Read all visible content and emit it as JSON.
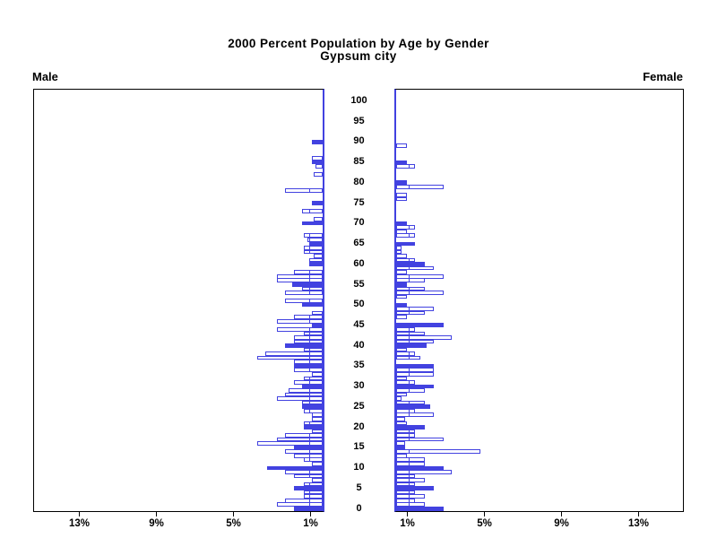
{
  "title": {
    "line1": "2000 Percent Population by Age by Gender",
    "line2": "Gypsum city"
  },
  "labels": {
    "male": "Male",
    "female": "Female"
  },
  "colors": {
    "bar_blue": "#4242e0",
    "axis_black": "#000000",
    "background": "#ffffff"
  },
  "axes": {
    "age_tick_labels": [
      "0",
      "5",
      "10",
      "15",
      "20",
      "25",
      "30",
      "35",
      "40",
      "45",
      "50",
      "55",
      "60",
      "65",
      "70",
      "75",
      "80",
      "85",
      "90",
      "95",
      "100"
    ],
    "male_pct_ticks": [
      {
        "value": 13,
        "label": "13%"
      },
      {
        "value": 9,
        "label": "9%"
      },
      {
        "value": 5,
        "label": "5%"
      },
      {
        "value": 1,
        "label": "1%"
      }
    ],
    "female_pct_ticks": [
      {
        "value": 1,
        "label": "1%"
      },
      {
        "value": 5,
        "label": "5%"
      },
      {
        "value": 9,
        "label": "9%"
      },
      {
        "value": 13,
        "label": "13%"
      }
    ]
  },
  "chart_data": {
    "type": "bar",
    "subtype": "population-pyramid",
    "title": "2000 Percent Population by Age by Gender",
    "subtitle": "Gypsum city",
    "unit": "percent of population",
    "ages_note": "one bar per single year of age; array index = age in years (0 to 100); bars at ages divisible by 5 are solid filled, others are outlined",
    "age_axis_ticks": [
      0,
      5,
      10,
      15,
      20,
      25,
      30,
      35,
      40,
      45,
      50,
      55,
      60,
      65,
      70,
      75,
      80,
      85,
      90,
      95,
      100
    ],
    "pct_axis_ticks": [
      1,
      5,
      9,
      13
    ],
    "xlim_each_side": [
      0,
      15
    ],
    "series": [
      {
        "name": "Male",
        "side": "left",
        "values": [
          1.8,
          2.7,
          2.3,
          1.3,
          1.3,
          1.8,
          1.3,
          0.9,
          1.8,
          2.3,
          3.2,
          0.9,
          1.3,
          1.8,
          2.3,
          1.8,
          3.7,
          2.7,
          2.3,
          0.9,
          1.3,
          1.3,
          0.9,
          0.9,
          1.3,
          1.4,
          1.4,
          2.7,
          2.3,
          2.1,
          1.4,
          1.8,
          1.3,
          0.9,
          1.8,
          1.8,
          1.8,
          3.7,
          3.3,
          1.3,
          2.3,
          1.8,
          1.8,
          1.3,
          2.7,
          0.9,
          2.7,
          1.8,
          0.9,
          0,
          1.4,
          2.3,
          0,
          2.3,
          1.4,
          1.9,
          2.7,
          2.7,
          1.8,
          0,
          1.0,
          1.0,
          0.8,
          1.3,
          1.3,
          1.0,
          1.1,
          1.3,
          0,
          0,
          1.4,
          0.8,
          0,
          1.4,
          0,
          0.9,
          0,
          0,
          2.3,
          0,
          0,
          0,
          0.8,
          0,
          0.7,
          0.9,
          0.9,
          0,
          0,
          0,
          0.9,
          0,
          0,
          0,
          0,
          0,
          0,
          0,
          0,
          0,
          0
        ]
      },
      {
        "name": "Female",
        "side": "right",
        "values": [
          2.8,
          1.8,
          1.3,
          1.8,
          1.3,
          2.3,
          1.3,
          1.8,
          1.3,
          3.2,
          2.8,
          1.8,
          1.8,
          0.9,
          4.7,
          0.8,
          0.8,
          2.8,
          1.3,
          1.3,
          1.8,
          0.9,
          0.8,
          2.3,
          1.3,
          2.1,
          1.8,
          0.6,
          0.9,
          1.8,
          2.3,
          1.3,
          0.9,
          2.3,
          2.3,
          2.3,
          0,
          1.6,
          1.3,
          0.9,
          1.9,
          2.3,
          3.2,
          1.8,
          1.3,
          2.8,
          0,
          0.9,
          1.8,
          2.3,
          0.9,
          0,
          0.9,
          2.8,
          1.8,
          0.9,
          1.8,
          2.8,
          0.9,
          2.3,
          1.8,
          1.3,
          0.9,
          0.6,
          0.6,
          1.3,
          0,
          1.3,
          0.9,
          1.3,
          0.9,
          0,
          0,
          0,
          0,
          0,
          0.9,
          0.9,
          0,
          2.8,
          0.9,
          0,
          0,
          0,
          1.3,
          0.9,
          0,
          0,
          0,
          0.9,
          0,
          0,
          0,
          0,
          0,
          0,
          0,
          0,
          0,
          0,
          0
        ]
      }
    ]
  }
}
